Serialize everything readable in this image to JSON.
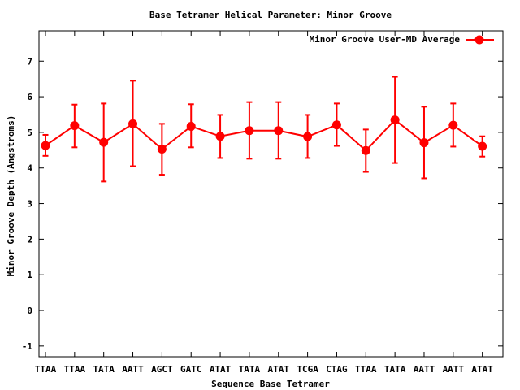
{
  "chart_data": {
    "type": "line",
    "title": "Base Tetramer Helical Parameter: Minor Groove",
    "xlabel": "Sequence Base Tetramer",
    "ylabel": "Minor Groove Depth (Angstroms)",
    "ylim": [
      -1.3,
      7.85
    ],
    "yticks": [
      -1,
      0,
      1,
      2,
      3,
      4,
      5,
      6,
      7
    ],
    "grid": false,
    "legend_position": "top-right",
    "categories": [
      "TTAA",
      "TTAA",
      "TATA",
      "AATT",
      "AGCT",
      "GATC",
      "ATAT",
      "TATA",
      "ATAT",
      "TCGA",
      "CTAG",
      "TTAA",
      "TATA",
      "AATT",
      "AATT",
      "ATAT"
    ],
    "series": [
      {
        "name": "Minor Groove User-MD Average",
        "color": "#ff0000",
        "marker": "circle",
        "values": [
          4.63,
          5.19,
          4.72,
          5.24,
          4.53,
          5.17,
          4.89,
          5.05,
          5.05,
          4.88,
          5.21,
          4.49,
          5.35,
          4.71,
          5.2,
          4.61
        ],
        "error_low": [
          4.34,
          4.58,
          3.62,
          4.05,
          3.81,
          4.58,
          4.28,
          4.26,
          4.26,
          4.28,
          4.62,
          3.89,
          4.14,
          3.71,
          4.6,
          4.32
        ],
        "error_high": [
          4.93,
          5.78,
          5.81,
          6.45,
          5.24,
          5.79,
          5.49,
          5.85,
          5.85,
          5.49,
          5.81,
          5.08,
          6.56,
          5.72,
          5.81,
          4.89
        ]
      }
    ]
  }
}
